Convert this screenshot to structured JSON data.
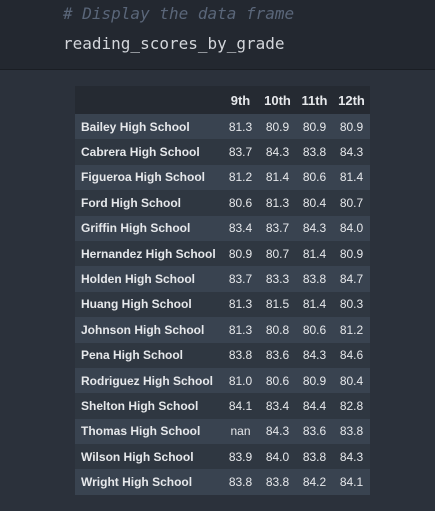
{
  "cell": {
    "comment": "# Display the data frame",
    "code": "reading_scores_by_grade"
  },
  "table": {
    "columns": [
      "9th",
      "10th",
      "11th",
      "12th"
    ],
    "rows": [
      {
        "school": "Bailey High School",
        "values": [
          "81.3",
          "80.9",
          "80.9",
          "80.9"
        ]
      },
      {
        "school": "Cabrera High School",
        "values": [
          "83.7",
          "84.3",
          "83.8",
          "84.3"
        ]
      },
      {
        "school": "Figueroa High School",
        "values": [
          "81.2",
          "81.4",
          "80.6",
          "81.4"
        ]
      },
      {
        "school": "Ford High School",
        "values": [
          "80.6",
          "81.3",
          "80.4",
          "80.7"
        ]
      },
      {
        "school": "Griffin High School",
        "values": [
          "83.4",
          "83.7",
          "84.3",
          "84.0"
        ]
      },
      {
        "school": "Hernandez High School",
        "values": [
          "80.9",
          "80.7",
          "81.4",
          "80.9"
        ]
      },
      {
        "school": "Holden High School",
        "values": [
          "83.7",
          "83.3",
          "83.8",
          "84.7"
        ]
      },
      {
        "school": "Huang High School",
        "values": [
          "81.3",
          "81.5",
          "81.4",
          "80.3"
        ]
      },
      {
        "school": "Johnson High School",
        "values": [
          "81.3",
          "80.8",
          "80.6",
          "81.2"
        ]
      },
      {
        "school": "Pena High School",
        "values": [
          "83.8",
          "83.6",
          "84.3",
          "84.6"
        ]
      },
      {
        "school": "Rodriguez High School",
        "values": [
          "81.0",
          "80.6",
          "80.9",
          "80.4"
        ]
      },
      {
        "school": "Shelton High School",
        "values": [
          "84.1",
          "83.4",
          "84.4",
          "82.8"
        ]
      },
      {
        "school": "Thomas High School",
        "values": [
          "nan",
          "84.3",
          "83.6",
          "83.8"
        ]
      },
      {
        "school": "Wilson High School",
        "values": [
          "83.9",
          "84.0",
          "83.8",
          "84.3"
        ]
      },
      {
        "school": "Wright High School",
        "values": [
          "83.8",
          "83.8",
          "84.2",
          "84.1"
        ]
      }
    ]
  }
}
